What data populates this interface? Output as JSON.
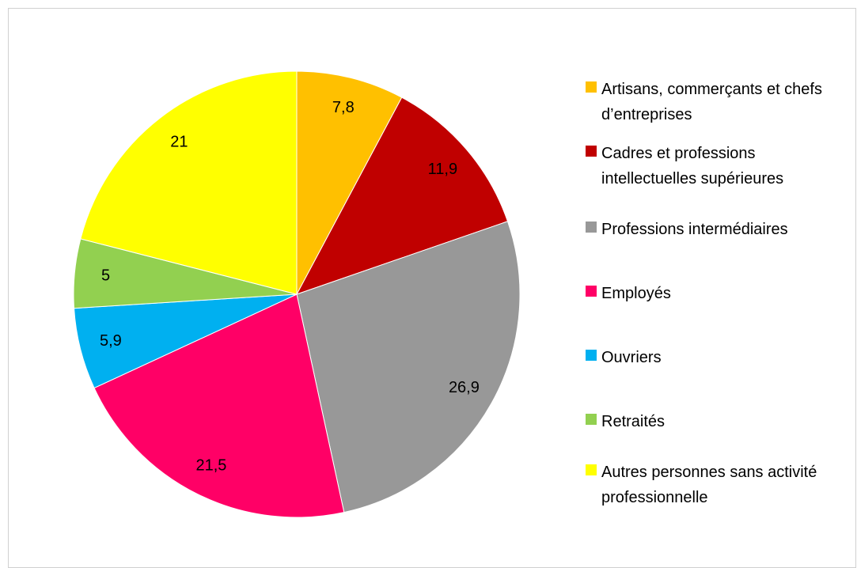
{
  "chart_data": {
    "type": "pie",
    "categories": [
      "Artisans, commerçants et chefs d’entreprises",
      "Cadres et professions intellectuelles supérieures",
      "Professions intermédiaires",
      "Employés",
      "Ouvriers",
      "Retraités",
      "Autres personnes sans activité professionnelle"
    ],
    "values": [
      7.8,
      11.9,
      26.9,
      21.5,
      5.9,
      5,
      21
    ],
    "value_labels": [
      "7,8",
      "11,9",
      "26,9",
      "21,5",
      "5,9",
      "5",
      "21"
    ],
    "colors": [
      "#FFC000",
      "#C00000",
      "#989898",
      "#FF0066",
      "#00B0F0",
      "#92D050",
      "#FFFF00"
    ],
    "legend": "right"
  }
}
